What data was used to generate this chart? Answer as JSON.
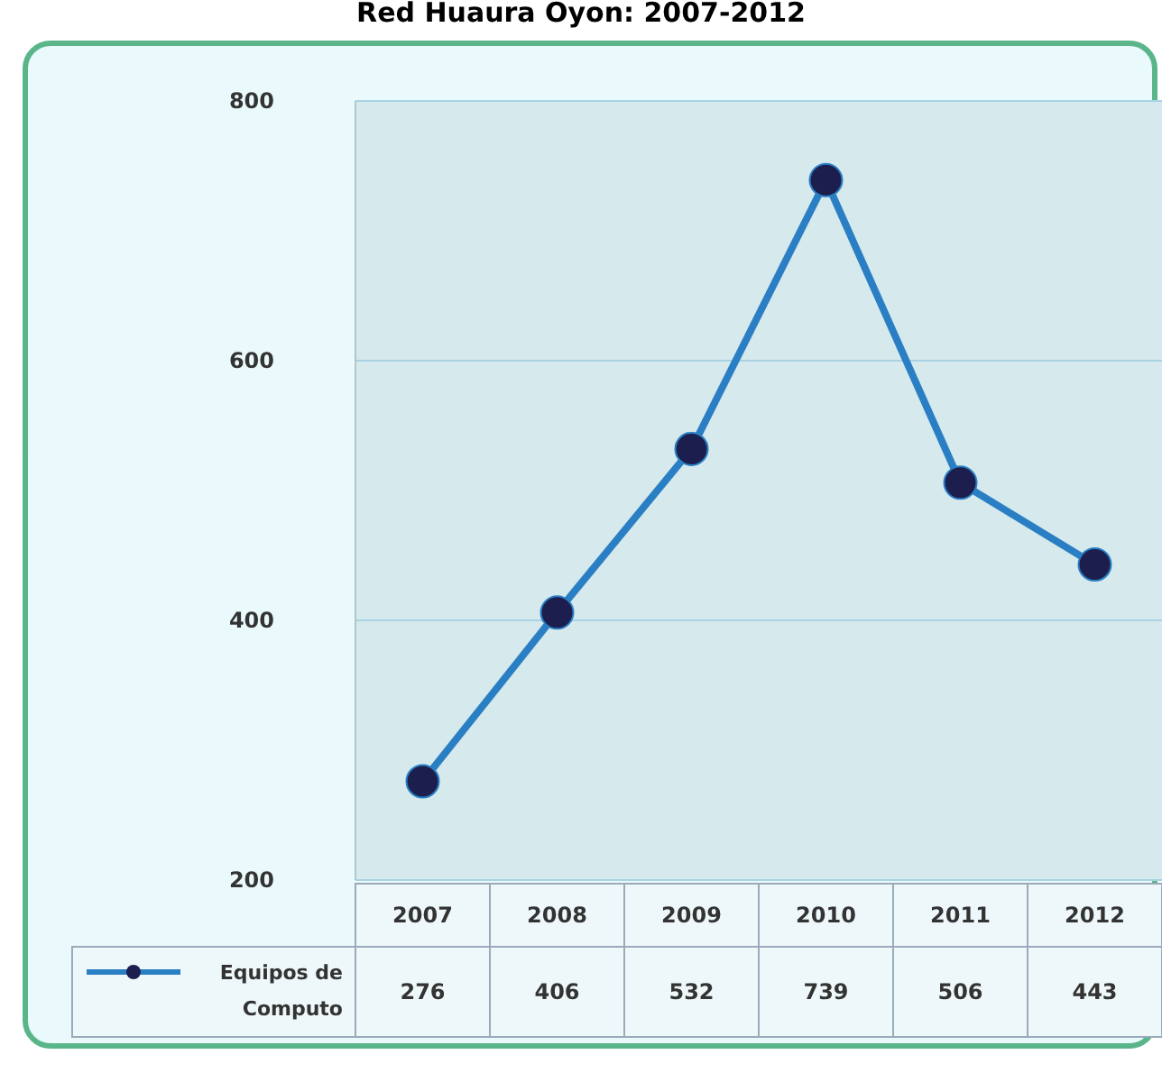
{
  "chart_data": {
    "type": "line",
    "title": "Red Huaura Oyon: 2007-2012",
    "categories": [
      "2007",
      "2008",
      "2009",
      "2010",
      "2011",
      "2012"
    ],
    "series": [
      {
        "name": "Equipos de Computo",
        "color": "#2a7fc4",
        "values": [
          276,
          406,
          532,
          739,
          506,
          443
        ]
      }
    ],
    "ylim": [
      200,
      800
    ],
    "yticks": [
      200,
      400,
      600,
      800
    ],
    "grid": "y",
    "marker": "circle",
    "line_style": "solid",
    "data_labels": true,
    "legend": "bottom left"
  }
}
